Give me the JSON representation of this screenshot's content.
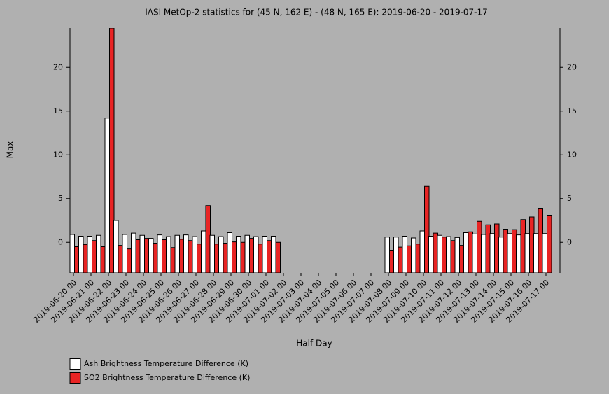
{
  "chart_data": {
    "type": "bar",
    "title": "IASI MetOp-2 statistics for (45 N, 162 E) - (48 N, 165 E): 2019-06-20 - 2019-07-17",
    "xlabel": "Half Day",
    "ylabel": "Max",
    "categories": [
      "2019-06-20 00",
      null,
      "2019-06-21 00",
      null,
      "2019-06-22 00",
      null,
      "2019-06-23 00",
      null,
      "2019-06-24 00",
      null,
      "2019-06-25 00",
      null,
      "2019-06-26 00",
      null,
      "2019-06-27 00",
      null,
      "2019-06-28 00",
      null,
      "2019-06-29 00",
      null,
      "2019-06-30 00",
      null,
      "2019-07-01 00",
      null,
      "2019-07-02 00",
      null,
      "2019-07-03 00",
      null,
      "2019-07-04 00",
      null,
      "2019-07-05 00",
      null,
      "2019-07-06 00",
      null,
      "2019-07-07 00",
      null,
      "2019-07-08 00",
      null,
      "2019-07-09 00",
      null,
      "2019-07-10 00",
      null,
      "2019-07-11 00",
      null,
      "2019-07-12 00",
      null,
      "2019-07-13 00",
      null,
      "2019-07-14 00",
      null,
      "2019-07-15 00",
      null,
      "2019-07-16 00",
      null,
      "2019-07-17 00"
    ],
    "series": [
      {
        "name": "Ash Brightness Temperature Difference (K)",
        "color": "#ffffff",
        "values": [
          0.9,
          0.7,
          0.7,
          0.8,
          14.2,
          2.5,
          0.9,
          1.05,
          0.8,
          0.45,
          0.85,
          0.65,
          0.8,
          0.85,
          0.65,
          1.3,
          0.8,
          0.65,
          1.1,
          0.7,
          0.8,
          0.65,
          0.7,
          0.7,
          null,
          null,
          null,
          null,
          null,
          null,
          null,
          null,
          null,
          null,
          null,
          null,
          0.6,
          0.6,
          0.7,
          0.5,
          1.3,
          0.7,
          0.8,
          0.65,
          0.55,
          1.1,
          0.95,
          0.9,
          1.0,
          0.6,
          1.0,
          0.85,
          1.0,
          1.0,
          1.0
        ]
      },
      {
        "name": "SO2 Brightness Temperature Difference (K)",
        "color": "#e82424",
        "values": [
          -0.5,
          -0.25,
          0.2,
          -0.5,
          24.5,
          -0.35,
          -0.75,
          0.3,
          0.45,
          -0.1,
          0.3,
          -0.6,
          0.35,
          0.2,
          -0.2,
          4.2,
          -0.2,
          -0.1,
          0.05,
          0,
          0.45,
          -0.2,
          0.2,
          0,
          null,
          null,
          null,
          null,
          null,
          null,
          null,
          null,
          null,
          null,
          null,
          null,
          -0.9,
          -0.55,
          -0.4,
          -0.2,
          6.4,
          1.05,
          0.6,
          0.2,
          -0.35,
          1.2,
          2.4,
          2.0,
          2.1,
          1.5,
          1.45,
          2.6,
          2.9,
          3.9,
          3.1
        ]
      }
    ],
    "ylim": [
      -3.5,
      24.5
    ],
    "yticks": [
      0,
      5,
      10,
      15,
      20
    ]
  }
}
